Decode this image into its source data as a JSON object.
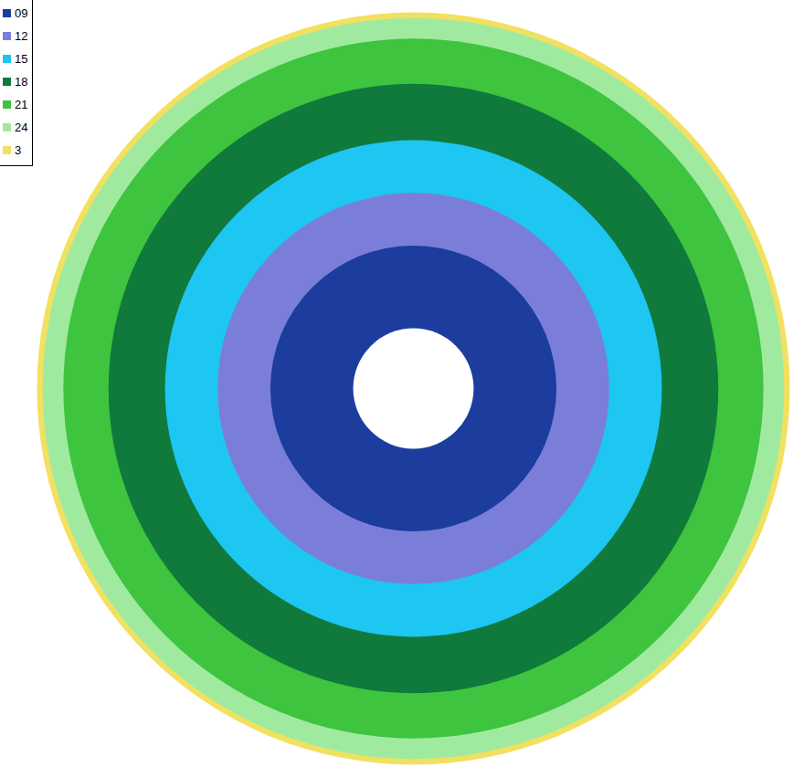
{
  "chart_data": {
    "type": "ring_map",
    "tick_labels": false,
    "legend": "top-left",
    "legend_labels": [
      "09",
      "12",
      "15",
      "18",
      "21",
      "24",
      "3"
    ],
    "colors": [
      "#1c3c9e",
      "#7a7ed8",
      "#1ec6f2",
      "#0f7a3c",
      "#3ec43e",
      "#a0eaa0",
      "#f2e060"
    ],
    "rings": [
      {
        "class": "3",
        "outer_radius": 1.0
      },
      {
        "class": "24",
        "outer_radius": 0.985
      },
      {
        "class": "21",
        "outer_radius": 0.93
      },
      {
        "class": "18",
        "outer_radius": 0.81
      },
      {
        "class": "15",
        "outer_radius": 0.66
      },
      {
        "class": "12",
        "outer_radius": 0.52
      },
      {
        "class": "09",
        "outer_radius": 0.38
      }
    ],
    "hole_radius": 0.16
  }
}
